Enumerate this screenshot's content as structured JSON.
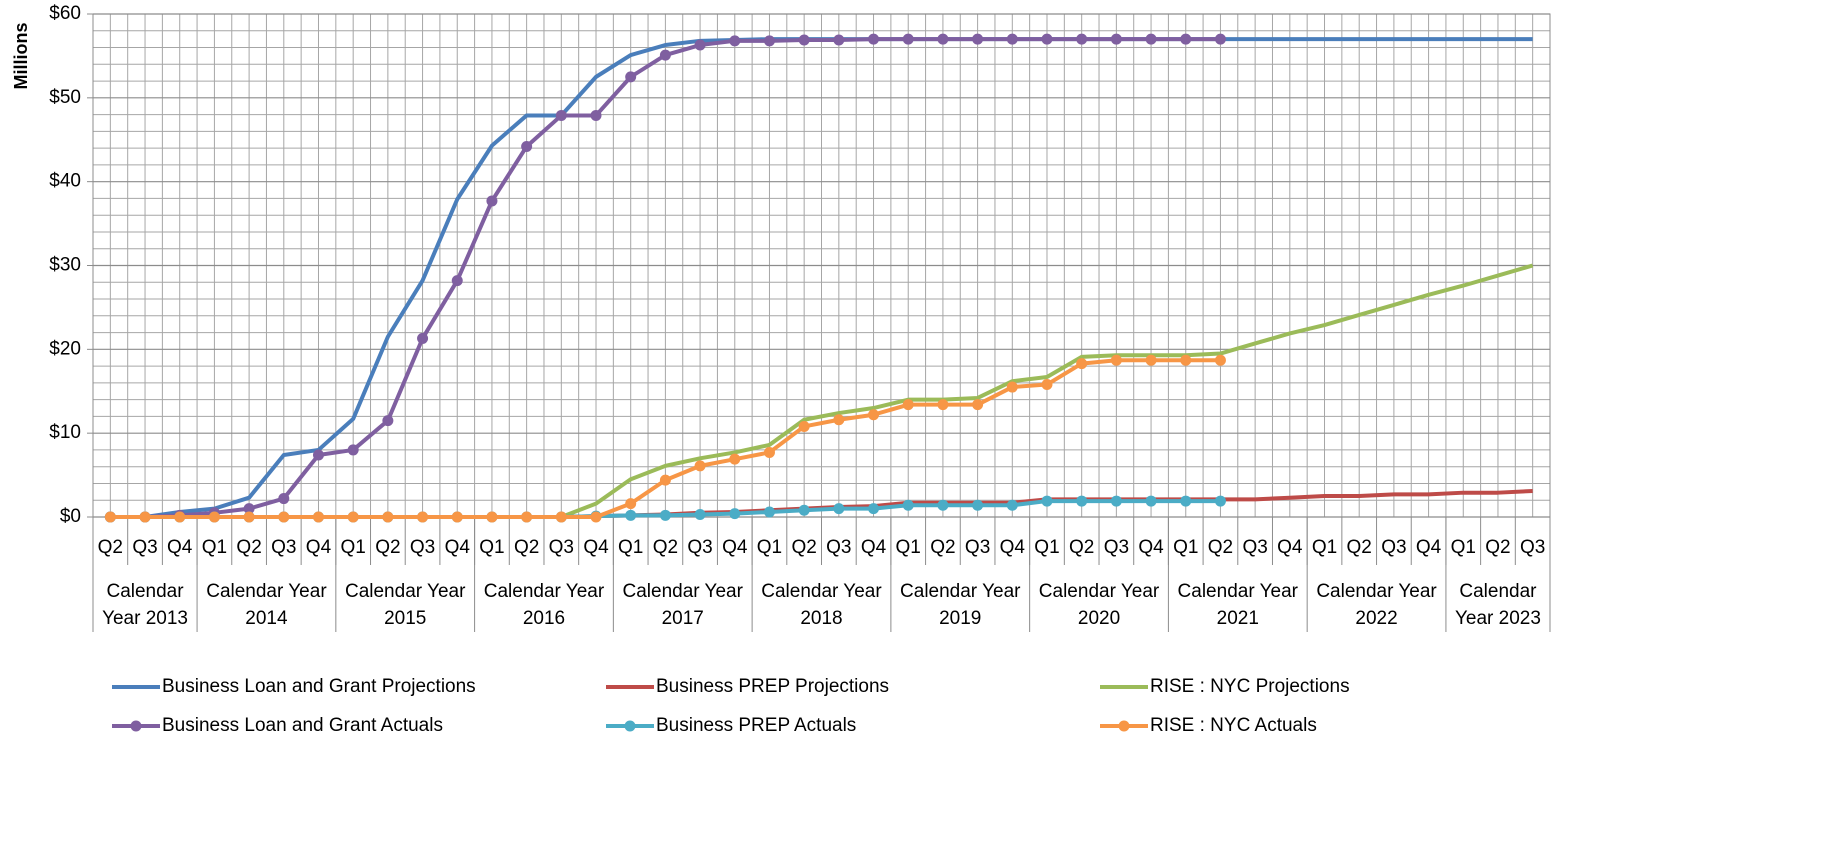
{
  "chart_data": {
    "type": "line",
    "y_label": "Millions",
    "category_groups": [
      {
        "label": "Calendar Year 2013",
        "quarters": [
          "Q2",
          "Q3",
          "Q4"
        ]
      },
      {
        "label": "Calendar Year 2014",
        "quarters": [
          "Q1",
          "Q2",
          "Q3",
          "Q4"
        ]
      },
      {
        "label": "Calendar Year 2015",
        "quarters": [
          "Q1",
          "Q2",
          "Q3",
          "Q4"
        ]
      },
      {
        "label": "Calendar Year 2016",
        "quarters": [
          "Q1",
          "Q2",
          "Q3",
          "Q4"
        ]
      },
      {
        "label": "Calendar Year 2017",
        "quarters": [
          "Q1",
          "Q2",
          "Q3",
          "Q4"
        ]
      },
      {
        "label": "Calendar Year 2018",
        "quarters": [
          "Q1",
          "Q2",
          "Q3",
          "Q4"
        ]
      },
      {
        "label": "Calendar Year 2019",
        "quarters": [
          "Q1",
          "Q2",
          "Q3",
          "Q4"
        ]
      },
      {
        "label": "Calendar Year 2020",
        "quarters": [
          "Q1",
          "Q2",
          "Q3",
          "Q4"
        ]
      },
      {
        "label": "Calendar Year 2021",
        "quarters": [
          "Q1",
          "Q2",
          "Q3",
          "Q4"
        ]
      },
      {
        "label": "Calendar Year 2022",
        "quarters": [
          "Q1",
          "Q2",
          "Q3",
          "Q4"
        ]
      },
      {
        "label": "Calendar Year 2023",
        "quarters": [
          "Q1",
          "Q2",
          "Q3"
        ]
      }
    ],
    "ylim": [
      0,
      60
    ],
    "yticks": [
      {
        "value": 0,
        "label": "$0"
      },
      {
        "value": 10,
        "label": "$10"
      },
      {
        "value": 20,
        "label": "$20"
      },
      {
        "value": 30,
        "label": "$30"
      },
      {
        "value": 40,
        "label": "$40"
      },
      {
        "value": 50,
        "label": "$50"
      },
      {
        "value": 60,
        "label": "$60"
      }
    ],
    "minor_yticks": [
      2,
      4,
      6,
      8,
      12,
      14,
      16,
      18,
      22,
      24,
      26,
      28,
      32,
      34,
      36,
      38,
      42,
      44,
      46,
      48,
      52,
      54,
      56,
      58
    ],
    "grid": true,
    "series": [
      {
        "name": "Business Loan and Grant Projections",
        "color": "#4a7ebb",
        "markers": false,
        "values": [
          0,
          0,
          0.6,
          1.0,
          2.3,
          7.4,
          8.0,
          11.7,
          21.5,
          28.2,
          37.9,
          44.3,
          47.9,
          47.9,
          52.5,
          55.1,
          56.3,
          56.8,
          56.9,
          57,
          57,
          57,
          57,
          57,
          57,
          57,
          57,
          57,
          57,
          57,
          57,
          57,
          57,
          57,
          57,
          57,
          57,
          57,
          57,
          57,
          57,
          57
        ]
      },
      {
        "name": "Business PREP Projections",
        "color": "#be4b48",
        "markers": false,
        "values": [
          0,
          0,
          0,
          0,
          0,
          0,
          0,
          0,
          0,
          0,
          0,
          0,
          0,
          0,
          0.1,
          0.2,
          0.3,
          0.5,
          0.6,
          0.8,
          1.0,
          1.2,
          1.3,
          1.7,
          1.7,
          1.7,
          1.7,
          2.1,
          2.1,
          2.1,
          2.1,
          2.1,
          2.1,
          2.1,
          2.3,
          2.5,
          2.5,
          2.7,
          2.7,
          2.9,
          2.9,
          3.1
        ]
      },
      {
        "name": "RISE : NYC Projections",
        "color": "#9bbb59",
        "markers": false,
        "values": [
          0,
          0,
          0,
          0,
          0,
          0,
          0,
          0,
          0,
          0,
          0,
          0,
          0,
          0,
          1.6,
          4.5,
          6.1,
          7.0,
          7.7,
          8.6,
          11.6,
          12.4,
          13.0,
          14.0,
          14.0,
          14.2,
          16.2,
          16.7,
          19.1,
          19.3,
          19.3,
          19.3,
          19.5,
          20.7,
          21.9,
          22.9,
          24.1,
          25.3,
          26.5,
          27.6,
          28.8,
          30.0
        ]
      },
      {
        "name": "Business Loan and Grant Actuals",
        "color": "#7f5fa0",
        "markers": true,
        "values": [
          0,
          0,
          0.2,
          0.5,
          1.0,
          2.2,
          7.4,
          8.0,
          11.5,
          21.3,
          28.2,
          37.7,
          44.2,
          47.9,
          47.9,
          52.5,
          55.1,
          56.3,
          56.8,
          56.8,
          56.9,
          56.9,
          57,
          57,
          57,
          57,
          57,
          57,
          57,
          57,
          57,
          57,
          57,
          null,
          null,
          null,
          null,
          null,
          null,
          null,
          null,
          null
        ]
      },
      {
        "name": "Business PREP Actuals",
        "color": "#4bacc6",
        "markers": true,
        "values": [
          0,
          0,
          0,
          0,
          0,
          0,
          0,
          0,
          0,
          0,
          0,
          0,
          0,
          0,
          0.1,
          0.2,
          0.2,
          0.3,
          0.4,
          0.6,
          0.8,
          1.0,
          1.0,
          1.4,
          1.4,
          1.4,
          1.4,
          1.9,
          1.9,
          1.9,
          1.9,
          1.9,
          1.9,
          null,
          null,
          null,
          null,
          null,
          null,
          null,
          null,
          null
        ]
      },
      {
        "name": "RISE : NYC Actuals",
        "color": "#f79646",
        "markers": true,
        "values": [
          0,
          0,
          0,
          0,
          0,
          0,
          0,
          0,
          0,
          0,
          0,
          0,
          0,
          0,
          0,
          1.6,
          4.4,
          6.1,
          6.9,
          7.7,
          10.8,
          11.6,
          12.2,
          13.4,
          13.4,
          13.4,
          15.5,
          15.8,
          18.3,
          18.7,
          18.7,
          18.7,
          18.7,
          null,
          null,
          null,
          null,
          null,
          null,
          null,
          null,
          null
        ]
      }
    ]
  }
}
